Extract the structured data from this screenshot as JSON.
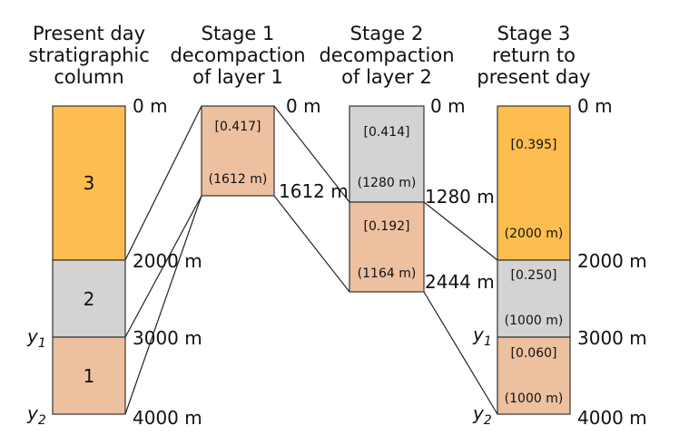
{
  "colors": {
    "layer3": "#FDBE4F",
    "layer2": "#D3D3D3",
    "layer1": "#EDC0A0",
    "outline": "#333333"
  },
  "columns": {
    "present": {
      "title_lines": [
        "Present day",
        "stratigraphic",
        "column"
      ],
      "layers": [
        {
          "label": "3",
          "top_m": 0,
          "bottom_m": 2000
        },
        {
          "label": "2",
          "top_m": 2000,
          "bottom_m": 3000
        },
        {
          "label": "1",
          "top_m": 3000,
          "bottom_m": 4000
        }
      ],
      "depth_labels": [
        "0 m",
        "2000 m",
        "3000 m",
        "4000 m"
      ],
      "y_labels": [
        {
          "main": "y",
          "sub": "1"
        },
        {
          "main": "y",
          "sub": "2"
        }
      ]
    },
    "stage1": {
      "title_lines": [
        "Stage 1",
        "decompaction",
        "of layer 1"
      ],
      "porosity": "[0.417]",
      "thickness": "(1612 m)",
      "depth_labels": [
        "0 m",
        "1612 m"
      ]
    },
    "stage2": {
      "title_lines": [
        "Stage 2",
        "decompaction",
        "of layer 2"
      ],
      "layers": [
        {
          "porosity": "[0.414]",
          "thickness": "(1280 m)"
        },
        {
          "porosity": "[0.192]",
          "thickness": "(1164 m)"
        }
      ],
      "depth_labels": [
        "0 m",
        "1280 m",
        "2444 m"
      ]
    },
    "stage3": {
      "title_lines": [
        "Stage 3",
        "return to",
        "present day"
      ],
      "layers": [
        {
          "porosity": "[0.395]",
          "thickness": "(2000 m)"
        },
        {
          "porosity": "[0.250]",
          "thickness": "(1000 m)"
        },
        {
          "porosity": "[0.060]",
          "thickness": "(1000 m)"
        }
      ],
      "depth_labels": [
        "0 m",
        "2000 m",
        "3000 m",
        "4000 m"
      ],
      "y_labels": [
        {
          "main": "y",
          "sub": "1"
        },
        {
          "main": "y",
          "sub": "2"
        }
      ]
    }
  }
}
